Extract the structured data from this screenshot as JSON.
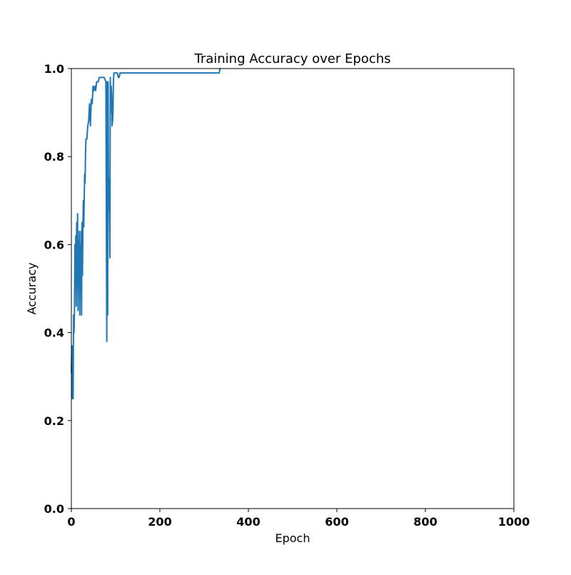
{
  "chart_data": {
    "type": "line",
    "title": "Training Accuracy over Epochs",
    "xlabel": "Epoch",
    "ylabel": "Accuracy",
    "xlim": [
      0,
      1000
    ],
    "ylim": [
      0.0,
      1.0
    ],
    "xticks": [
      "0",
      "200",
      "400",
      "600",
      "800",
      "1000"
    ],
    "yticks": [
      "0.0",
      "0.2",
      "0.4",
      "0.6",
      "0.8",
      "1.0"
    ],
    "grid": false,
    "legend": "none",
    "series": [
      {
        "color": "#1f77b4",
        "x": [
          0,
          1,
          2,
          3,
          4,
          5,
          6,
          7,
          8,
          9,
          10,
          11,
          12,
          13,
          14,
          15,
          16,
          17,
          18,
          19,
          20,
          21,
          22,
          23,
          24,
          25,
          26,
          27,
          28,
          29,
          30,
          31,
          32,
          33,
          35,
          37,
          39,
          41,
          43,
          45,
          47,
          49,
          51,
          53,
          55,
          57,
          59,
          61,
          63,
          66,
          70,
          74,
          78,
          80,
          81,
          82,
          83,
          84,
          85,
          86,
          87,
          88,
          89,
          90,
          91,
          92,
          93,
          94,
          95,
          96,
          97,
          98,
          99,
          100,
          101,
          102,
          104,
          106,
          108,
          110,
          115,
          118,
          120,
          125,
          150,
          200,
          250,
          300,
          334,
          336
        ],
        "y": [
          0.31,
          0.37,
          0.25,
          0.37,
          0.25,
          0.44,
          0.4,
          0.45,
          0.6,
          0.51,
          0.62,
          0.46,
          0.65,
          0.5,
          0.67,
          0.45,
          0.61,
          0.52,
          0.63,
          0.44,
          0.6,
          0.5,
          0.63,
          0.44,
          0.65,
          0.53,
          0.63,
          0.7,
          0.64,
          0.7,
          0.76,
          0.74,
          0.81,
          0.84,
          0.84,
          0.87,
          0.88,
          0.92,
          0.87,
          0.93,
          0.92,
          0.96,
          0.95,
          0.96,
          0.95,
          0.97,
          0.97,
          0.97,
          0.98,
          0.98,
          0.98,
          0.98,
          0.97,
          0.38,
          0.97,
          0.44,
          0.97,
          0.68,
          0.75,
          0.68,
          0.57,
          0.98,
          0.9,
          0.96,
          0.94,
          0.87,
          0.88,
          0.9,
          0.97,
          0.99,
          0.99,
          0.99,
          0.99,
          0.99,
          0.99,
          0.99,
          0.99,
          0.98,
          0.98,
          0.99,
          0.99,
          0.99,
          0.99,
          0.99,
          0.99,
          0.99,
          0.99,
          0.99,
          0.99,
          1.0
        ]
      }
    ]
  }
}
